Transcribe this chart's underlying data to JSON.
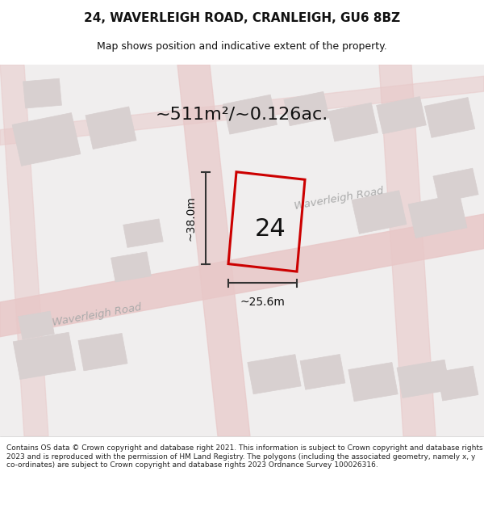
{
  "title_line1": "24, WAVERLEIGH ROAD, CRANLEIGH, GU6 8BZ",
  "title_line2": "Map shows position and indicative extent of the property.",
  "area_text": "~511m²/~0.126ac.",
  "label_number": "24",
  "dim_height": "~38.0m",
  "dim_width": "~25.6m",
  "road_label1": "Waverleigh Road",
  "road_label2": "Waverleigh Road",
  "footer_text": "Contains OS data © Crown copyright and database right 2021. This information is subject to Crown copyright and database rights 2023 and is reproduced with the permission of HM Land Registry. The polygons (including the associated geometry, namely x, y co-ordinates) are subject to Crown copyright and database rights 2023 Ordnance Survey 100026316.",
  "bg_color": "#f5f0f0",
  "map_bg": "#f0eeee",
  "road_color": "#e8c8c8",
  "building_color": "#d8d0d0",
  "plot_border_color": "#cc0000",
  "dim_line_color": "#333333",
  "title_bg": "#ffffff",
  "footer_bg": "#ffffff"
}
